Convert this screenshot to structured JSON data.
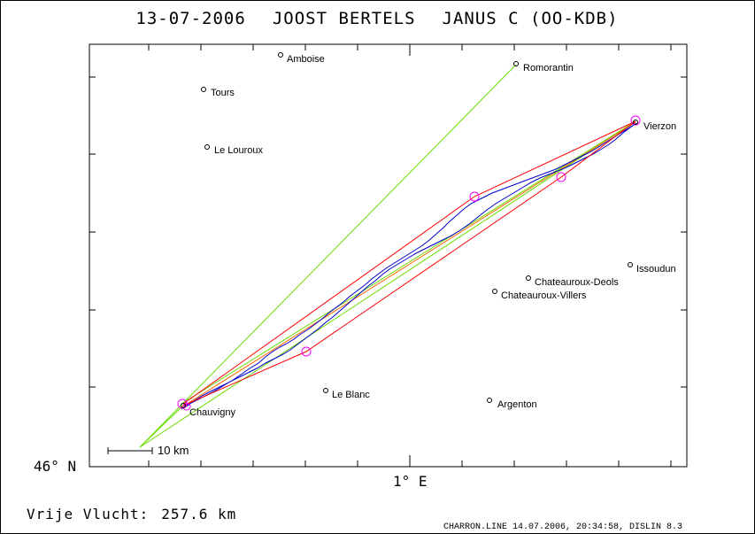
{
  "header": {
    "date": "13-07-2006",
    "pilot": "JOOST BERTELS",
    "glider": "JANUS C (OO-KDB)"
  },
  "towns": [
    {
      "name": "Amboise"
    },
    {
      "name": "Romorantin"
    },
    {
      "name": "Tours"
    },
    {
      "name": "Le Louroux"
    },
    {
      "name": "Vierzon"
    },
    {
      "name": "Issoudun"
    },
    {
      "name": "Chateauroux-Deols"
    },
    {
      "name": "Chateauroux-Villers"
    },
    {
      "name": "Chauvigny"
    },
    {
      "name": "Le Blanc"
    },
    {
      "name": "Argenton"
    }
  ],
  "axes": {
    "lat_label": "46° N",
    "lon_label": "1° E"
  },
  "scale_bar": {
    "label": "10 km"
  },
  "distance": {
    "label": "Vrije Vlucht:",
    "value": "257.6 km"
  },
  "footer": {
    "text": "CHARRON.LINE 14.07.2006, 20:34:58, DISLIN 8.3"
  },
  "colors": {
    "track": "#0000cc",
    "task_line": "#ff0000",
    "sector_line": "#66dd00",
    "turnpoint": "#ff00ff",
    "final_leg": "#ff6600"
  }
}
